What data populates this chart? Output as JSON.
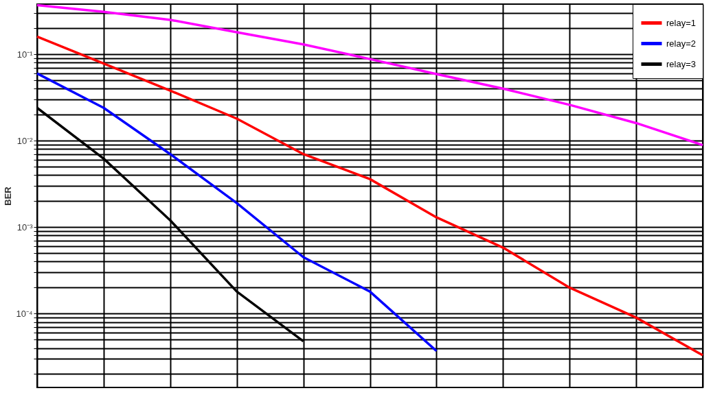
{
  "chart_data": {
    "type": "line",
    "ylabel": "BER",
    "log": "y",
    "grid": true,
    "legend": "top right",
    "tick_labels": "y",
    "line_style": "solid",
    "marker": "none",
    "categories": [
      null,
      null,
      null,
      null,
      null,
      null,
      null,
      null,
      null,
      null,
      null
    ],
    "ylim": [
      1.4e-05,
      0.38
    ],
    "yticks": [
      {
        "value": 2e-05,
        "label": null
      },
      {
        "value": 3e-05,
        "label": null
      },
      {
        "value": 4e-05,
        "label": null
      },
      {
        "value": 5e-05,
        "label": null
      },
      {
        "value": 6e-05,
        "label": null
      },
      {
        "value": 7e-05,
        "label": null
      },
      {
        "value": 8e-05,
        "label": null
      },
      {
        "value": 9e-05,
        "label": null
      },
      {
        "value": 0.0001,
        "label": "10⁻⁴"
      },
      {
        "value": 0.0002,
        "label": null
      },
      {
        "value": 0.0003,
        "label": null
      },
      {
        "value": 0.0004,
        "label": null
      },
      {
        "value": 0.0005,
        "label": null
      },
      {
        "value": 0.0006,
        "label": null
      },
      {
        "value": 0.0007,
        "label": null
      },
      {
        "value": 0.0008,
        "label": null
      },
      {
        "value": 0.0009,
        "label": null
      },
      {
        "value": 0.001,
        "label": "10⁻³"
      },
      {
        "value": 0.002,
        "label": null
      },
      {
        "value": 0.003,
        "label": null
      },
      {
        "value": 0.004,
        "label": null
      },
      {
        "value": 0.005,
        "label": null
      },
      {
        "value": 0.006,
        "label": null
      },
      {
        "value": 0.007,
        "label": null
      },
      {
        "value": 0.008,
        "label": null
      },
      {
        "value": 0.009,
        "label": null
      },
      {
        "value": 0.01,
        "label": "10⁻²"
      },
      {
        "value": 0.02,
        "label": null
      },
      {
        "value": 0.03,
        "label": null
      },
      {
        "value": 0.04,
        "label": null
      },
      {
        "value": 0.05,
        "label": null
      },
      {
        "value": 0.06,
        "label": null
      },
      {
        "value": 0.07,
        "label": null
      },
      {
        "value": 0.08,
        "label": null
      },
      {
        "value": 0.09,
        "label": null
      },
      {
        "value": 0.1,
        "label": "10⁻¹"
      },
      {
        "value": 0.2,
        "label": null
      },
      {
        "value": 0.3,
        "label": null
      }
    ],
    "series": [
      {
        "color": "#ff00ff",
        "values": [
          0.37,
          0.31,
          0.25,
          0.18,
          0.13,
          0.088,
          0.059,
          0.04,
          0.026,
          0.016,
          0.0089
        ]
      },
      {
        "name": "relay=1",
        "color": "#ff0000",
        "values": [
          0.16,
          0.078,
          0.038,
          0.018,
          0.007,
          0.0036,
          0.0013,
          0.00058,
          0.0002,
          9e-05,
          3.3e-05
        ]
      },
      {
        "name": "relay=2",
        "color": "#0000ff",
        "values": [
          0.06,
          0.024,
          0.007,
          0.0019,
          0.00045,
          0.00018,
          3.7e-05,
          null,
          null,
          null,
          null
        ]
      },
      {
        "name": "relay=3",
        "color": "#000000",
        "values": [
          0.024,
          0.0062,
          0.0012,
          0.00018,
          4.8e-05,
          null,
          null,
          null,
          null,
          null,
          null
        ]
      }
    ]
  }
}
